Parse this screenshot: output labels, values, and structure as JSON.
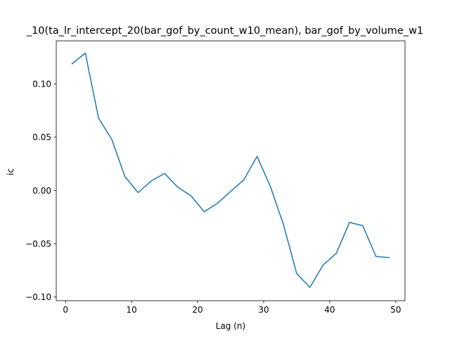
{
  "chart_data": {
    "type": "line",
    "title": "_10(ta_lr_intercept_20(bar_gof_by_count_w10_mean), bar_gof_by_volume_w1",
    "xlabel": "Lag (n)",
    "ylabel": "ic",
    "xlim": [
      -1.4,
      51.4
    ],
    "ylim": [
      -0.1035,
      0.1405
    ],
    "xticks": [
      0,
      10,
      20,
      30,
      40,
      50
    ],
    "xtick_labels": [
      "0",
      "10",
      "20",
      "30",
      "40",
      "50"
    ],
    "yticks": [
      -0.1,
      -0.05,
      0.0,
      0.05,
      0.1
    ],
    "ytick_labels": [
      "−0.10",
      "−0.05",
      "0.00",
      "0.05",
      "0.10"
    ],
    "grid": false,
    "legend": "none",
    "color": "#1f77b4",
    "series": [
      {
        "x": [
          1,
          3,
          5,
          7,
          9,
          11,
          13,
          15,
          17,
          19,
          21,
          23,
          25,
          27,
          29,
          31,
          33,
          35,
          37,
          39,
          41,
          43,
          45,
          47,
          49
        ],
        "values": [
          0.119,
          0.129,
          0.068,
          0.048,
          0.013,
          -0.002,
          0.009,
          0.016,
          0.003,
          -0.005,
          -0.02,
          -0.012,
          -0.001,
          0.01,
          0.032,
          0.004,
          -0.032,
          -0.078,
          -0.091,
          -0.07,
          -0.059,
          -0.03,
          -0.033,
          -0.062,
          -0.063
        ]
      }
    ]
  }
}
